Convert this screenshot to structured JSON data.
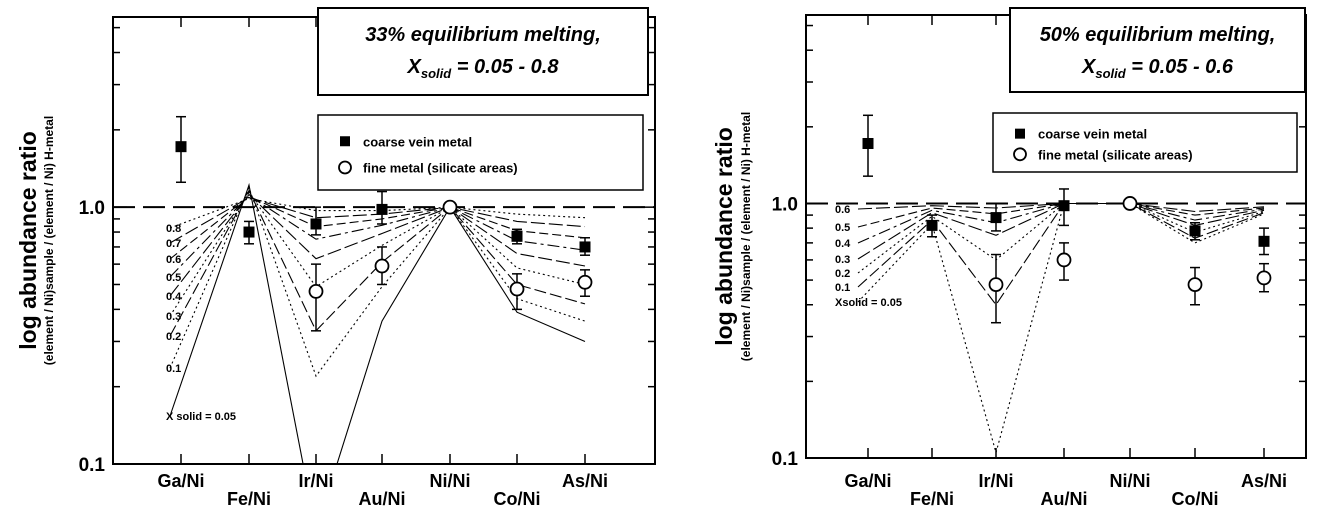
{
  "chart_data": [
    {
      "type": "scatter",
      "ylabel": "log abundance ratio",
      "ylabel_sub": "(element / Ni)sample / (element / Ni) H-metal",
      "yscale": "log",
      "ylim": [
        0.1,
        5.5
      ],
      "yticks": [
        0.1,
        1.0
      ],
      "ytick_labels": [
        "0.1",
        "1.0"
      ],
      "categories": [
        "Ga/Ni",
        "Fe/Ni",
        "Ir/Ni",
        "Au/Ni",
        "Ni/Ni",
        "Co/Ni",
        "As/Ni"
      ],
      "annotation": {
        "line1": "33% equilibrium melting,",
        "line2_prefix": "X",
        "line2_sub": "solid",
        "line2_suffix": " = 0.05 - 0.8"
      },
      "legend": {
        "placement": "top-right",
        "entries": [
          "coarse vein metal",
          "fine metal (silicate areas)"
        ]
      },
      "series": [
        {
          "name": "coarse vein metal",
          "marker": "filled-square",
          "points": [
            {
              "cat": "Ga/Ni",
              "y": 1.72,
              "lo": 1.25,
              "hi": 2.25
            },
            {
              "cat": "Fe/Ni",
              "y": 0.8,
              "lo": 0.72,
              "hi": 0.88
            },
            {
              "cat": "Ir/Ni",
              "y": 0.86,
              "lo": 0.78,
              "hi": 1.0
            },
            {
              "cat": "Au/Ni",
              "y": 0.98,
              "lo": 0.86,
              "hi": 1.15
            },
            {
              "cat": "Co/Ni",
              "y": 0.77,
              "lo": 0.72,
              "hi": 0.82
            },
            {
              "cat": "As/Ni",
              "y": 0.7,
              "lo": 0.65,
              "hi": 0.76
            }
          ]
        },
        {
          "name": "fine metal (silicate areas)",
          "marker": "open-circle",
          "points": [
            {
              "cat": "Ir/Ni",
              "y": 0.47,
              "lo": 0.33,
              "hi": 0.6
            },
            {
              "cat": "Au/Ni",
              "y": 0.59,
              "lo": 0.5,
              "hi": 0.7
            },
            {
              "cat": "Ni/Ni",
              "y": 1.0,
              "lo": 1.0,
              "hi": 1.0
            },
            {
              "cat": "Co/Ni",
              "y": 0.48,
              "lo": 0.4,
              "hi": 0.55
            },
            {
              "cat": "As/Ni",
              "y": 0.51,
              "lo": 0.45,
              "hi": 0.57
            }
          ]
        }
      ],
      "reference_line": {
        "y": 1.0,
        "style": "dashed"
      },
      "model_curves": [
        {
          "label": "0.8",
          "x_solid": 0.8,
          "fe": 1.08,
          "ir": 0.97,
          "au": 0.97,
          "co": 0.94,
          "as": 0.91
        },
        {
          "label": "0.7",
          "x_solid": 0.7,
          "fe": 1.09,
          "ir": 0.91,
          "au": 0.94,
          "co": 0.88,
          "as": 0.84
        },
        {
          "label": "0.6",
          "x_solid": 0.6,
          "fe": 1.1,
          "ir": 0.84,
          "au": 0.9,
          "co": 0.81,
          "as": 0.76
        },
        {
          "label": "0.5",
          "x_solid": 0.5,
          "fe": 1.11,
          "ir": 0.75,
          "au": 0.85,
          "co": 0.74,
          "as": 0.68
        },
        {
          "label": "0.4",
          "x_solid": 0.4,
          "fe": 1.12,
          "ir": 0.63,
          "au": 0.79,
          "co": 0.66,
          "as": 0.59
        },
        {
          "label": "0.3",
          "x_solid": 0.3,
          "fe": 1.14,
          "ir": 0.49,
          "au": 0.71,
          "co": 0.58,
          "as": 0.5
        },
        {
          "label": "0.2",
          "x_solid": 0.2,
          "fe": 1.16,
          "ir": 0.33,
          "au": 0.61,
          "co": 0.5,
          "as": 0.42
        },
        {
          "label": "0.1",
          "x_solid": 0.1,
          "fe": 1.19,
          "ir": 0.22,
          "au": 0.49,
          "co": 0.44,
          "as": 0.36
        },
        {
          "label": "X solid = 0.05",
          "x_solid": 0.05,
          "fe": 1.22,
          "ir": 0.055,
          "au": 0.36,
          "co": 0.39,
          "as": 0.3
        }
      ]
    },
    {
      "type": "scatter",
      "ylabel": "log abundance ratio",
      "ylabel_sub": "(element / Ni)sample / (element / Ni) H-metal",
      "yscale": "log",
      "ylim": [
        0.1,
        5.5
      ],
      "yticks": [
        0.1,
        1.0
      ],
      "ytick_labels": [
        "0.1",
        "1.0"
      ],
      "categories": [
        "Ga/Ni",
        "Fe/Ni",
        "Ir/Ni",
        "Au/Ni",
        "Ni/Ni",
        "Co/Ni",
        "As/Ni"
      ],
      "annotation": {
        "line1": "50% equilibrium melting,",
        "line2_prefix": "X",
        "line2_sub": "solid",
        "line2_suffix": " = 0.05 - 0.6"
      },
      "legend": {
        "placement": "top-right",
        "entries": [
          "coarse vein metal",
          "fine metal (silicate areas)"
        ]
      },
      "series": [
        {
          "name": "coarse vein metal",
          "marker": "filled-square",
          "points": [
            {
              "cat": "Ga/Ni",
              "y": 1.72,
              "lo": 1.28,
              "hi": 2.22
            },
            {
              "cat": "Fe/Ni",
              "y": 0.82,
              "lo": 0.74,
              "hi": 0.9
            },
            {
              "cat": "Ir/Ni",
              "y": 0.88,
              "lo": 0.78,
              "hi": 1.0
            },
            {
              "cat": "Au/Ni",
              "y": 0.98,
              "lo": 0.82,
              "hi": 1.14
            },
            {
              "cat": "Co/Ni",
              "y": 0.78,
              "lo": 0.72,
              "hi": 0.84
            },
            {
              "cat": "As/Ni",
              "y": 0.71,
              "lo": 0.63,
              "hi": 0.8
            }
          ]
        },
        {
          "name": "fine metal (silicate areas)",
          "marker": "open-circle",
          "points": [
            {
              "cat": "Ir/Ni",
              "y": 0.48,
              "lo": 0.34,
              "hi": 0.63
            },
            {
              "cat": "Au/Ni",
              "y": 0.6,
              "lo": 0.5,
              "hi": 0.7
            },
            {
              "cat": "Ni/Ni",
              "y": 1.0,
              "lo": 1.0,
              "hi": 1.0
            },
            {
              "cat": "Co/Ni",
              "y": 0.48,
              "lo": 0.4,
              "hi": 0.56
            },
            {
              "cat": "As/Ni",
              "y": 0.51,
              "lo": 0.45,
              "hi": 0.58
            }
          ]
        }
      ],
      "reference_line": {
        "y": 1.0,
        "style": "dashed"
      },
      "model_curves": [
        {
          "label": "0.6",
          "x_solid": 0.6,
          "fe": 0.98,
          "ir": 0.96,
          "au": 1.0,
          "co": 0.93,
          "as": 0.97
        },
        {
          "label": "0.5",
          "x_solid": 0.5,
          "fe": 0.96,
          "ir": 0.91,
          "au": 1.0,
          "co": 0.9,
          "as": 0.96
        },
        {
          "label": "0.4",
          "x_solid": 0.4,
          "fe": 0.94,
          "ir": 0.84,
          "au": 1.0,
          "co": 0.86,
          "as": 0.95
        },
        {
          "label": "0.3",
          "x_solid": 0.3,
          "fe": 0.92,
          "ir": 0.75,
          "au": 1.0,
          "co": 0.82,
          "as": 0.94
        },
        {
          "label": "0.2",
          "x_solid": 0.2,
          "fe": 0.89,
          "ir": 0.6,
          "au": 1.0,
          "co": 0.77,
          "as": 0.93
        },
        {
          "label": "0.1",
          "x_solid": 0.1,
          "fe": 0.86,
          "ir": 0.4,
          "au": 1.0,
          "co": 0.73,
          "as": 0.92
        },
        {
          "label": "Xsolid = 0.05",
          "x_solid": 0.05,
          "fe": 0.83,
          "ir": 0.105,
          "au": 1.0,
          "co": 0.7,
          "as": 0.91
        }
      ]
    }
  ]
}
